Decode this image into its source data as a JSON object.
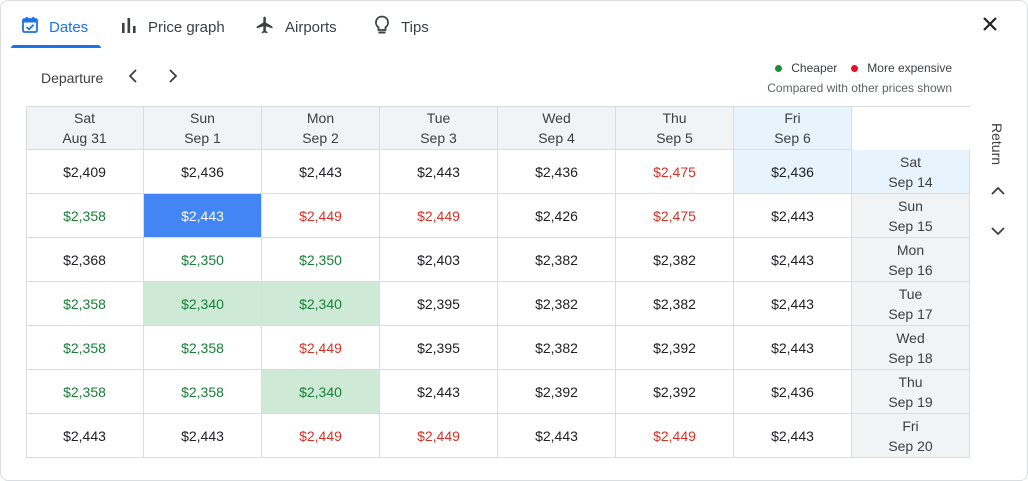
{
  "tabs": [
    {
      "label": "Dates",
      "icon": "calendar-icon"
    },
    {
      "label": "Price graph",
      "icon": "bar-chart-icon"
    },
    {
      "label": "Airports",
      "icon": "airplane-icon"
    },
    {
      "label": "Tips",
      "icon": "lightbulb-icon"
    }
  ],
  "departure_label": "Departure",
  "return_label": "Return",
  "legend": {
    "cheaper": "Cheaper",
    "more_expensive": "More expensive",
    "note": "Compared with other prices shown",
    "cheaper_color": "#188038",
    "expensive_color": "#d93025"
  },
  "columns": [
    {
      "day": "Sat",
      "date": "Aug 31"
    },
    {
      "day": "Sun",
      "date": "Sep 1"
    },
    {
      "day": "Mon",
      "date": "Sep 2"
    },
    {
      "day": "Tue",
      "date": "Sep 3"
    },
    {
      "day": "Wed",
      "date": "Sep 4"
    },
    {
      "day": "Thu",
      "date": "Sep 5"
    },
    {
      "day": "Fri",
      "date": "Sep 6",
      "highlight": true
    }
  ],
  "rows": [
    {
      "day": "Sat",
      "date": "Sep 14",
      "highlight": true,
      "prices": [
        {
          "v": "$2,409",
          "s": "normal"
        },
        {
          "v": "$2,436",
          "s": "normal"
        },
        {
          "v": "$2,443",
          "s": "normal"
        },
        {
          "v": "$2,443",
          "s": "normal"
        },
        {
          "v": "$2,436",
          "s": "normal"
        },
        {
          "v": "$2,475",
          "s": "exp"
        },
        {
          "v": "$2,436",
          "s": "normal",
          "bg": "blue"
        }
      ]
    },
    {
      "day": "Sun",
      "date": "Sep 15",
      "prices": [
        {
          "v": "$2,358",
          "s": "cheap"
        },
        {
          "v": "$2,443",
          "s": "selected"
        },
        {
          "v": "$2,449",
          "s": "exp"
        },
        {
          "v": "$2,449",
          "s": "exp"
        },
        {
          "v": "$2,426",
          "s": "normal"
        },
        {
          "v": "$2,475",
          "s": "exp"
        },
        {
          "v": "$2,443",
          "s": "normal"
        }
      ]
    },
    {
      "day": "Mon",
      "date": "Sep 16",
      "prices": [
        {
          "v": "$2,368",
          "s": "normal"
        },
        {
          "v": "$2,350",
          "s": "cheap"
        },
        {
          "v": "$2,350",
          "s": "cheap"
        },
        {
          "v": "$2,403",
          "s": "normal"
        },
        {
          "v": "$2,382",
          "s": "normal"
        },
        {
          "v": "$2,382",
          "s": "normal"
        },
        {
          "v": "$2,443",
          "s": "normal"
        }
      ]
    },
    {
      "day": "Tue",
      "date": "Sep 17",
      "prices": [
        {
          "v": "$2,358",
          "s": "cheap"
        },
        {
          "v": "$2,340",
          "s": "cheap",
          "bg": "green"
        },
        {
          "v": "$2,340",
          "s": "cheap",
          "bg": "green"
        },
        {
          "v": "$2,395",
          "s": "normal"
        },
        {
          "v": "$2,382",
          "s": "normal"
        },
        {
          "v": "$2,382",
          "s": "normal"
        },
        {
          "v": "$2,443",
          "s": "normal"
        }
      ]
    },
    {
      "day": "Wed",
      "date": "Sep 18",
      "prices": [
        {
          "v": "$2,358",
          "s": "cheap"
        },
        {
          "v": "$2,358",
          "s": "cheap"
        },
        {
          "v": "$2,449",
          "s": "exp"
        },
        {
          "v": "$2,395",
          "s": "normal"
        },
        {
          "v": "$2,382",
          "s": "normal"
        },
        {
          "v": "$2,392",
          "s": "normal"
        },
        {
          "v": "$2,443",
          "s": "normal"
        }
      ]
    },
    {
      "day": "Thu",
      "date": "Sep 19",
      "prices": [
        {
          "v": "$2,358",
          "s": "cheap"
        },
        {
          "v": "$2,358",
          "s": "cheap"
        },
        {
          "v": "$2,340",
          "s": "cheap",
          "bg": "green"
        },
        {
          "v": "$2,443",
          "s": "normal"
        },
        {
          "v": "$2,392",
          "s": "normal"
        },
        {
          "v": "$2,392",
          "s": "normal"
        },
        {
          "v": "$2,436",
          "s": "normal"
        }
      ]
    },
    {
      "day": "Fri",
      "date": "Sep 20",
      "prices": [
        {
          "v": "$2,443",
          "s": "normal"
        },
        {
          "v": "$2,443",
          "s": "normal"
        },
        {
          "v": "$2,449",
          "s": "exp"
        },
        {
          "v": "$2,449",
          "s": "exp"
        },
        {
          "v": "$2,443",
          "s": "normal"
        },
        {
          "v": "$2,449",
          "s": "exp"
        },
        {
          "v": "$2,443",
          "s": "normal"
        }
      ]
    }
  ]
}
